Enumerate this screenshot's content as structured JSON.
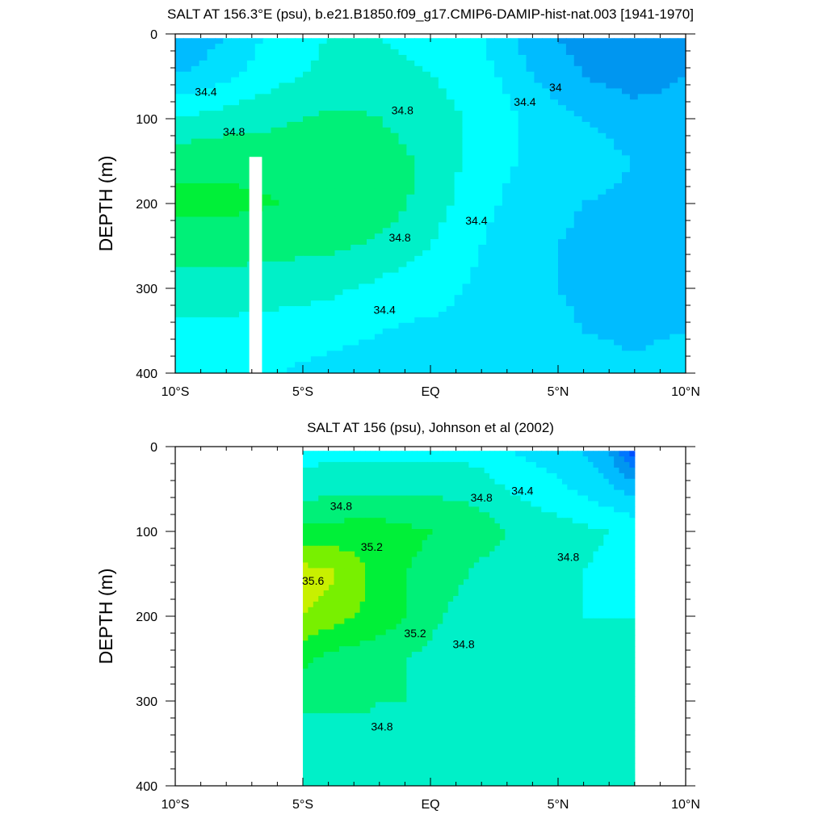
{
  "palette": {
    "levels": [
      33.2,
      33.4,
      33.6,
      33.8,
      34.0,
      34.2,
      34.4,
      34.6,
      34.8,
      35.0,
      35.2,
      35.4,
      35.6
    ],
    "colors": [
      "#0a0aa8",
      "#0019e0",
      "#0050ff",
      "#0076ff",
      "#0096f0",
      "#00bcff",
      "#00e0ff",
      "#00ffff",
      "#00f0c8",
      "#00f078",
      "#00f038",
      "#78f000",
      "#c8f000",
      "#ffff00"
    ]
  },
  "chart_data": [
    {
      "type": "heatmap",
      "title": "SALT AT 156.3°E (psu), b.e21.B1850.f09_g17.CMIP6-DAMIP-hist-nat.003 [1941-1970]",
      "ylabel": "DEPTH (m)",
      "xlabel": "",
      "xlim": [
        -10,
        10
      ],
      "ylim": [
        400,
        0
      ],
      "xticks": [
        -10,
        -5,
        0,
        5,
        10
      ],
      "xtick_labels": [
        "10°S",
        "5°S",
        "EQ",
        "5°N",
        "10°N"
      ],
      "yticks": [
        0,
        100,
        200,
        300,
        400
      ],
      "ytick_labels": [
        "0",
        "100",
        "200",
        "300",
        "400"
      ],
      "data_extent_x": [
        -10,
        10
      ],
      "data_extent_y": [
        5,
        400
      ],
      "missing_strip_x": [
        -7.1,
        -6.6
      ],
      "missing_strip_depth": [
        145,
        400
      ],
      "x": [
        -10,
        -8,
        -6,
        -4,
        -2,
        0,
        2,
        4,
        6,
        8,
        10
      ],
      "depth": [
        5,
        50,
        100,
        150,
        200,
        250,
        300,
        350,
        400
      ],
      "salinity": [
        [
          34.0,
          34.2,
          34.5,
          34.6,
          34.6,
          34.5,
          34.4,
          34.1,
          33.9,
          33.8,
          33.9
        ],
        [
          34.2,
          34.35,
          34.55,
          34.65,
          34.7,
          34.6,
          34.5,
          34.2,
          34.0,
          33.9,
          34.0
        ],
        [
          34.6,
          34.7,
          34.75,
          34.85,
          34.8,
          34.7,
          34.55,
          34.35,
          34.2,
          34.1,
          34.1
        ],
        [
          34.95,
          34.95,
          34.95,
          34.95,
          34.9,
          34.75,
          34.5,
          34.35,
          34.3,
          34.2,
          34.2
        ],
        [
          35.05,
          35.05,
          35.0,
          35.0,
          34.95,
          34.7,
          34.45,
          34.3,
          34.2,
          34.15,
          34.15
        ],
        [
          34.9,
          34.9,
          34.85,
          34.85,
          34.75,
          34.6,
          34.4,
          34.25,
          34.15,
          34.15,
          34.15
        ],
        [
          34.7,
          34.7,
          34.7,
          34.65,
          34.55,
          34.5,
          34.35,
          34.25,
          34.15,
          34.15,
          34.2
        ],
        [
          34.55,
          34.55,
          34.5,
          34.45,
          34.4,
          34.35,
          34.3,
          34.3,
          34.2,
          34.15,
          34.2
        ],
        [
          34.4,
          34.45,
          34.4,
          34.35,
          34.35,
          34.35,
          34.35,
          34.35,
          34.3,
          34.25,
          34.3
        ]
      ],
      "contour_labels": [
        {
          "text": "34.4",
          "x": -8.8,
          "depth": 68
        },
        {
          "text": "34.8",
          "x": -7.7,
          "depth": 115
        },
        {
          "text": "34.8",
          "x": -1.1,
          "depth": 90
        },
        {
          "text": "34.4",
          "x": 3.7,
          "depth": 80
        },
        {
          "text": "34",
          "x": 4.9,
          "depth": 63
        },
        {
          "text": "34.8",
          "x": -1.2,
          "depth": 240
        },
        {
          "text": "34.4",
          "x": 1.8,
          "depth": 220
        },
        {
          "text": "34.4",
          "x": -1.8,
          "depth": 325
        }
      ]
    },
    {
      "type": "heatmap",
      "title": "SALT AT 156 (psu), Johnson et al (2002)",
      "ylabel": "DEPTH (m)",
      "xlabel": "",
      "xlim": [
        -10,
        10
      ],
      "ylim": [
        400,
        0
      ],
      "xticks": [
        -10,
        -5,
        0,
        5,
        10
      ],
      "xtick_labels": [
        "10°S",
        "5°S",
        "EQ",
        "5°N",
        "10°N"
      ],
      "yticks": [
        0,
        100,
        200,
        300,
        400
      ],
      "ytick_labels": [
        "0",
        "100",
        "200",
        "300",
        "400"
      ],
      "data_extent_x": [
        -5,
        8
      ],
      "data_extent_y": [
        5,
        400
      ],
      "x": [
        -5,
        -4,
        -3,
        -2,
        -1,
        0,
        1,
        2,
        3,
        4,
        5,
        6,
        7,
        8
      ],
      "depth": [
        5,
        50,
        100,
        150,
        200,
        250,
        300,
        350,
        400
      ],
      "salinity": [
        [
          34.5,
          34.55,
          34.55,
          34.55,
          34.55,
          34.55,
          34.55,
          34.5,
          34.4,
          34.35,
          34.3,
          34.2,
          34.0,
          33.5
        ],
        [
          34.7,
          34.75,
          34.75,
          34.75,
          34.75,
          34.75,
          34.75,
          34.7,
          34.6,
          34.5,
          34.45,
          34.35,
          34.25,
          34.1
        ],
        [
          35.05,
          35.05,
          35.1,
          35.1,
          35.05,
          35.0,
          34.95,
          34.9,
          34.8,
          34.75,
          34.7,
          34.65,
          34.6,
          34.55
        ],
        [
          35.5,
          35.45,
          35.3,
          35.1,
          35.0,
          34.95,
          34.85,
          34.75,
          34.7,
          34.7,
          34.65,
          34.6,
          34.55,
          34.55
        ],
        [
          35.4,
          35.3,
          35.2,
          35.15,
          35.0,
          34.85,
          34.75,
          34.65,
          34.6,
          34.6,
          34.6,
          34.6,
          34.6,
          34.6
        ],
        [
          35.05,
          34.95,
          34.9,
          34.85,
          34.8,
          34.75,
          34.7,
          34.65,
          34.6,
          34.6,
          34.6,
          34.6,
          34.6,
          34.65
        ],
        [
          34.85,
          34.85,
          34.85,
          34.8,
          34.8,
          34.75,
          34.7,
          34.65,
          34.65,
          34.65,
          34.65,
          34.7,
          34.7,
          34.7
        ],
        [
          34.7,
          34.7,
          34.7,
          34.75,
          34.7,
          34.7,
          34.7,
          34.7,
          34.7,
          34.7,
          34.7,
          34.7,
          34.7,
          34.7
        ],
        [
          34.7,
          34.7,
          34.7,
          34.7,
          34.7,
          34.7,
          34.7,
          34.7,
          34.7,
          34.7,
          34.7,
          34.7,
          34.7,
          34.7
        ]
      ],
      "contour_labels": [
        {
          "text": "34.8",
          "x": -3.5,
          "depth": 70
        },
        {
          "text": "35.2",
          "x": -2.3,
          "depth": 118
        },
        {
          "text": "35.6",
          "x": -4.6,
          "depth": 158
        },
        {
          "text": "35.2",
          "x": -0.6,
          "depth": 220
        },
        {
          "text": "34.8",
          "x": 1.3,
          "depth": 233
        },
        {
          "text": "34.8",
          "x": 2.0,
          "depth": 60
        },
        {
          "text": "34.4",
          "x": 3.6,
          "depth": 52
        },
        {
          "text": "34.8",
          "x": 5.4,
          "depth": 130
        },
        {
          "text": "34.8",
          "x": -1.9,
          "depth": 330
        }
      ]
    }
  ]
}
